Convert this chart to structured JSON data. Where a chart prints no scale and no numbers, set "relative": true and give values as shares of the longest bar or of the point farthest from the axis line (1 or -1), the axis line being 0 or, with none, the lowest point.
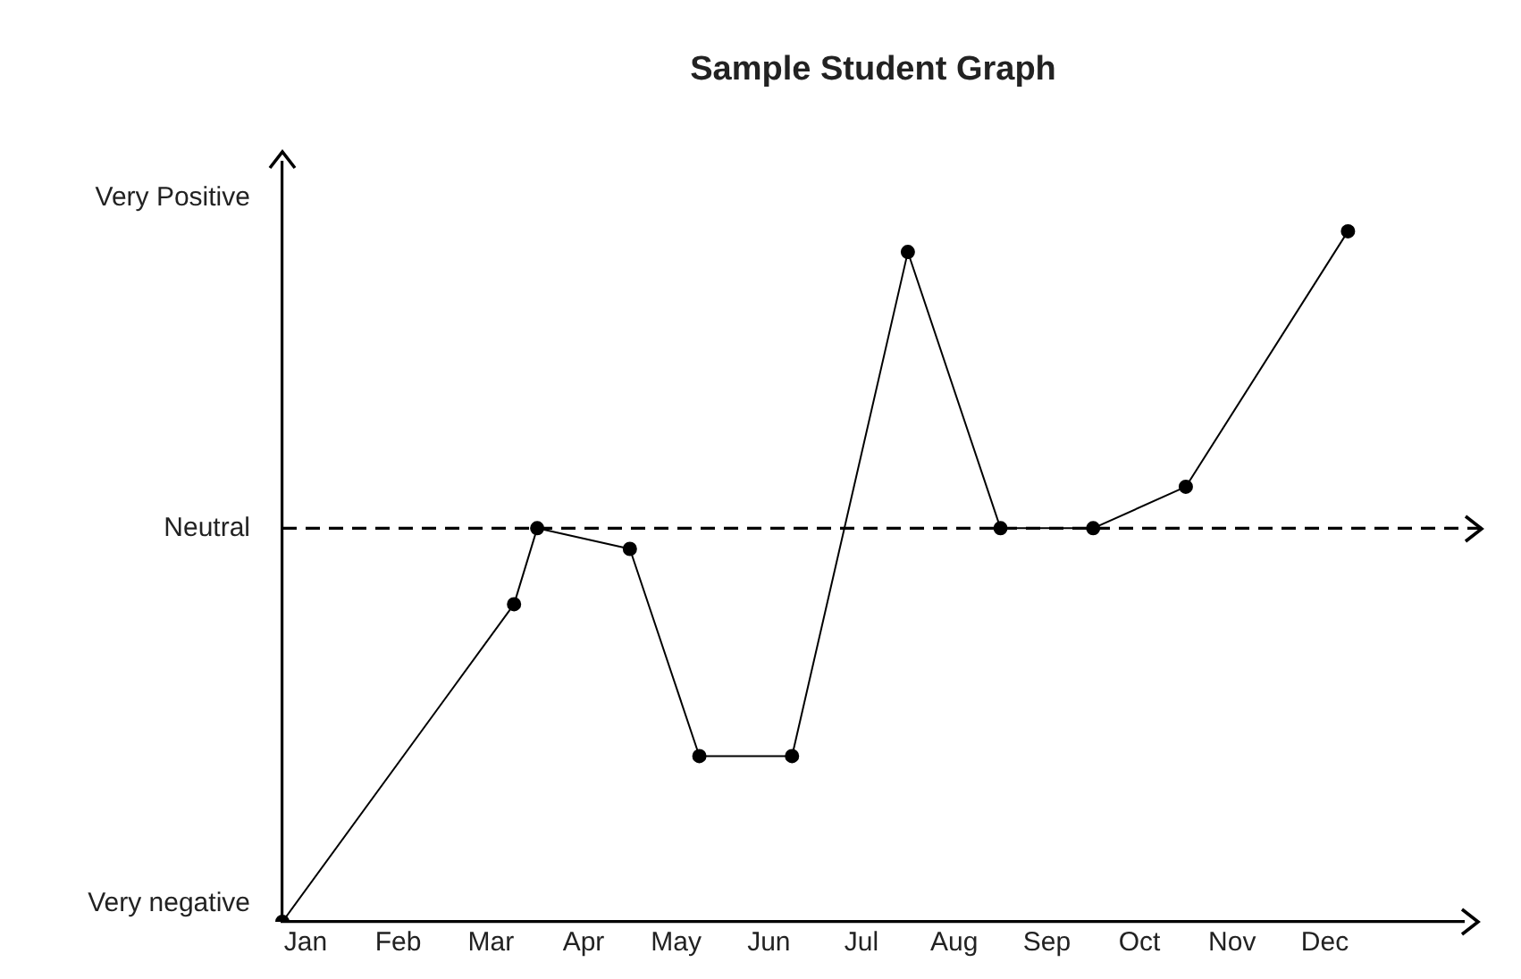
{
  "chart_data": {
    "type": "line",
    "title": "Sample Student Graph",
    "relative": true,
    "categories": [
      null,
      "Jan",
      null,
      null,
      null,
      "Feb",
      null,
      null,
      null,
      "Mar",
      null,
      null,
      null,
      "Apr",
      null,
      null,
      null,
      "May",
      null,
      null,
      null,
      "Jun",
      null,
      null,
      null,
      "Jul",
      null,
      null,
      null,
      "Aug",
      null,
      null,
      null,
      "Sep",
      null,
      null,
      null,
      "Oct",
      null,
      null,
      null,
      "Nov",
      null,
      null,
      null,
      "Dec",
      null,
      null,
      null,
      null,
      null,
      null
    ],
    "series": [
      {
        "color": "#000000",
        "values": [
          0,
          null,
          null,
          null,
          null,
          null,
          null,
          null,
          null,
          null,
          0.46,
          0.57,
          null,
          null,
          null,
          0.54,
          null,
          null,
          0.24,
          null,
          null,
          null,
          0.24,
          null,
          null,
          null,
          null,
          0.97,
          null,
          null,
          null,
          0.57,
          null,
          null,
          null,
          0.57,
          null,
          null,
          null,
          0.63,
          null,
          null,
          null,
          null,
          null,
          null,
          1,
          null,
          null,
          null,
          null,
          null
        ]
      }
    ],
    "ref_lines": [
      {
        "axis": "y",
        "value": 0.57,
        "label": "Neutral",
        "line_style": "dashed",
        "color": "#000000"
      }
    ],
    "annotations": [
      "Very Positive",
      "Very negative"
    ],
    "grid": false,
    "legend": false,
    "marker": "circle",
    "line_style": "solid"
  }
}
